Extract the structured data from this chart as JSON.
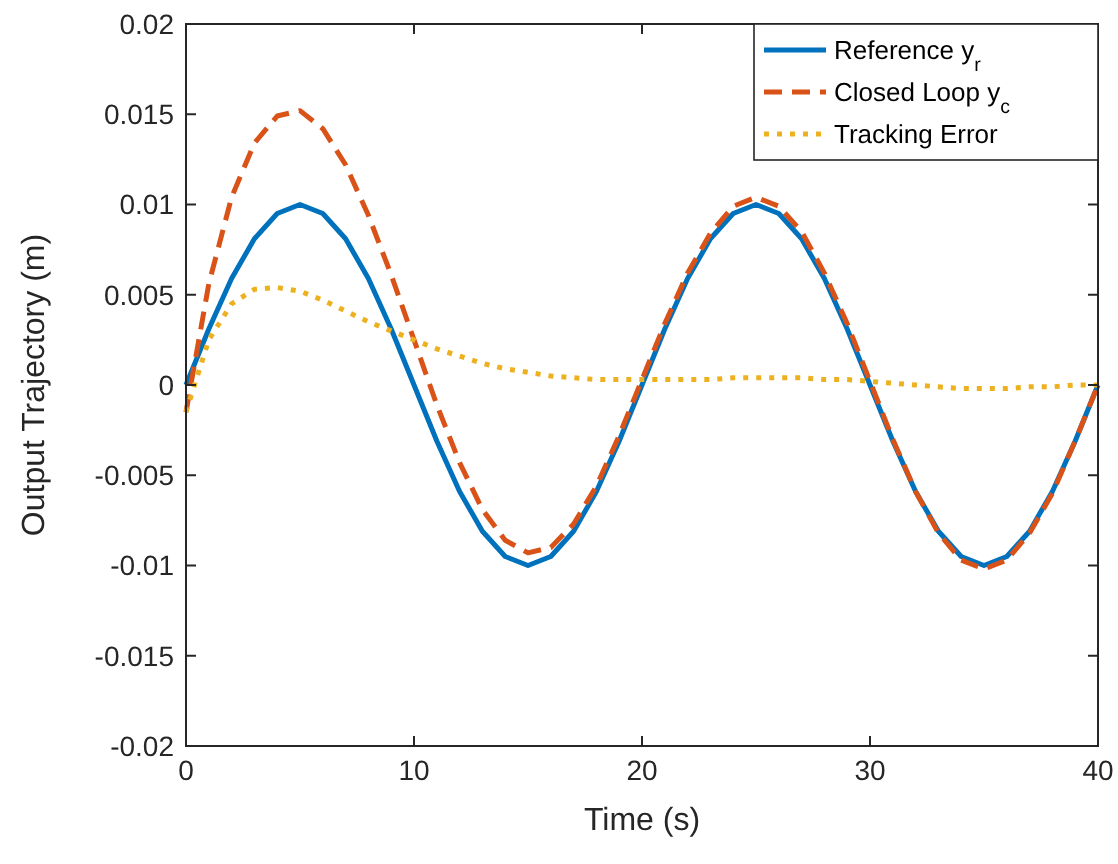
{
  "chart_data": {
    "type": "line",
    "xlabel": "Time (s)",
    "ylabel": "Output Trajectory (m)",
    "x": [
      0,
      1,
      2,
      3,
      4,
      5,
      6,
      7,
      8,
      9,
      10,
      11,
      12,
      13,
      14,
      15,
      16,
      17,
      18,
      19,
      20,
      21,
      22,
      23,
      24,
      25,
      26,
      27,
      28,
      29,
      30,
      31,
      32,
      33,
      34,
      35,
      36,
      37,
      38,
      39,
      40
    ],
    "series": [
      {
        "name": "Reference y$_{r}$",
        "color": "#0072bd",
        "line_style": "solid",
        "values": [
          0,
          0.0031,
          0.0059,
          0.0081,
          0.0095,
          0.01,
          0.0095,
          0.0081,
          0.0059,
          0.0031,
          0,
          -0.0031,
          -0.0059,
          -0.0081,
          -0.0095,
          -0.01,
          -0.0095,
          -0.0081,
          -0.0059,
          -0.0031,
          0,
          0.0031,
          0.0059,
          0.0081,
          0.0095,
          0.01,
          0.0095,
          0.0081,
          0.0059,
          0.0031,
          0,
          -0.0031,
          -0.0059,
          -0.0081,
          -0.0095,
          -0.01,
          -0.0095,
          -0.0081,
          -0.0059,
          -0.0031,
          0
        ]
      },
      {
        "name": "Closed Loop y$_{c}$",
        "color": "#d95319",
        "line_style": "dashed",
        "values": [
          -0.0015,
          0.0056,
          0.0104,
          0.0134,
          0.0149,
          0.0152,
          0.0142,
          0.0122,
          0.0094,
          0.0061,
          0.0025,
          -0.0011,
          -0.0043,
          -0.0069,
          -0.0086,
          -0.0093,
          -0.009,
          -0.0077,
          -0.0056,
          -0.0028,
          0.0003,
          0.0034,
          0.0062,
          0.0084,
          0.0099,
          0.0104,
          0.0099,
          0.0085,
          0.0062,
          0.0034,
          0.0002,
          -0.003,
          -0.0059,
          -0.0082,
          -0.0097,
          -0.0102,
          -0.0097,
          -0.0082,
          -0.006,
          -0.0031,
          0
        ]
      },
      {
        "name": "Tracking Error",
        "color": "#edb120",
        "line_style": "dotted",
        "values": [
          -0.0015,
          0.0025,
          0.0045,
          0.0053,
          0.0054,
          0.0052,
          0.0047,
          0.0041,
          0.0035,
          0.003,
          0.0025,
          0.002,
          0.0016,
          0.0012,
          0.0009,
          0.0007,
          0.0005,
          0.0004,
          0.0003,
          0.0003,
          0.0003,
          0.0003,
          0.0003,
          0.0003,
          0.0004,
          0.0004,
          0.0004,
          0.0004,
          0.0003,
          0.0003,
          0.0002,
          0.0001,
          0,
          -0.0001,
          -0.0002,
          -0.0002,
          -0.0002,
          -0.0001,
          -0.0001,
          0,
          0
        ]
      }
    ],
    "xlim": [
      0,
      40
    ],
    "xticks": [
      0,
      10,
      20,
      30,
      40
    ],
    "ylim": [
      -0.02,
      0.02
    ],
    "yticks": [
      -0.02,
      -0.015,
      -0.01,
      -0.005,
      0,
      0.005,
      0.01,
      0.015,
      0.02
    ],
    "grid": false,
    "legend": "top right",
    "marker": "none"
  }
}
